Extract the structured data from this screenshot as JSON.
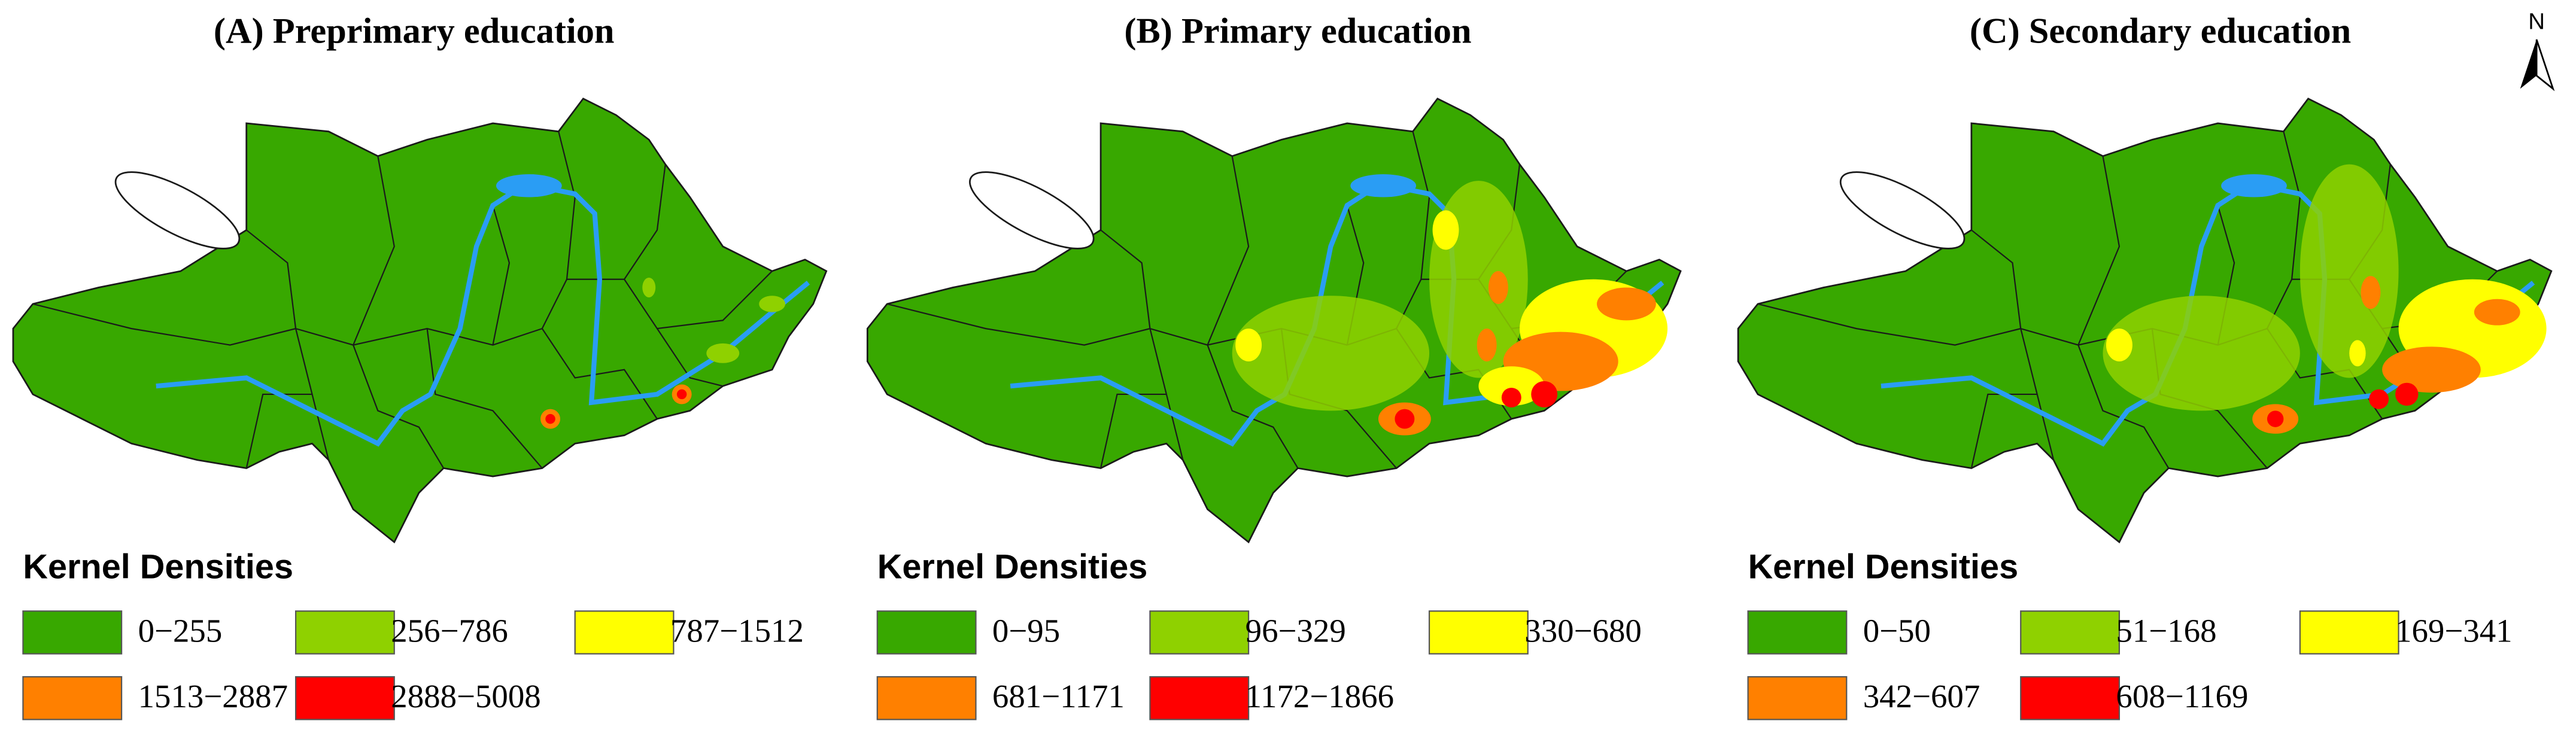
{
  "north": "N",
  "panels": [
    {
      "title": "(A) Preprimary education",
      "legend_title": "Kernel Densities",
      "legend": [
        {
          "label": "0−255",
          "color": "#38a800"
        },
        {
          "label": "256−786",
          "color": "#8fd100"
        },
        {
          "label": "787−1512",
          "color": "#ffff00"
        },
        {
          "label": "1513−2887",
          "color": "#ff8000"
        },
        {
          "label": "2888−5008",
          "color": "#ff0000"
        }
      ]
    },
    {
      "title": "(B) Primary education",
      "legend_title": "Kernel Densities",
      "legend": [
        {
          "label": "0−95",
          "color": "#38a800"
        },
        {
          "label": "96−329",
          "color": "#8fd100"
        },
        {
          "label": "330−680",
          "color": "#ffff00"
        },
        {
          "label": "681−1171",
          "color": "#ff8000"
        },
        {
          "label": "1172−1866",
          "color": "#ff0000"
        }
      ]
    },
    {
      "title": "(C) Secondary education",
      "legend_title": "Kernel Densities",
      "legend": [
        {
          "label": "0−50",
          "color": "#38a800"
        },
        {
          "label": "51−168",
          "color": "#8fd100"
        },
        {
          "label": "169−341",
          "color": "#ffff00"
        },
        {
          "label": "342−607",
          "color": "#ff8000"
        },
        {
          "label": "608−1169",
          "color": "#ff0000"
        }
      ]
    }
  ]
}
